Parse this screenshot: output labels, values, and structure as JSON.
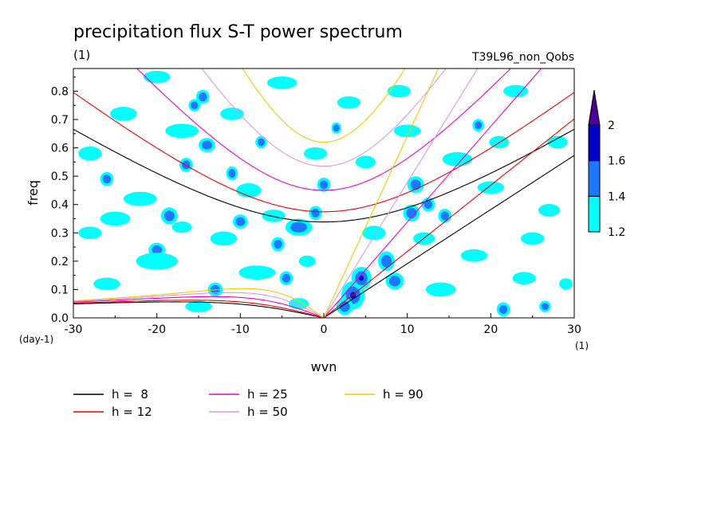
{
  "chart_data": {
    "type": "heatmap",
    "title": "precipitation flux S-T power spectrum",
    "subtitle_left": "(1)",
    "subtitle_right": "T39L96_non_Qobs",
    "xlabel": "wvn",
    "ylabel": "freq",
    "x_unit": "(1)",
    "y_unit": "(day-1)",
    "xlim": [
      -30,
      30
    ],
    "ylim": [
      0,
      0.88
    ],
    "x_ticks": [
      "-30",
      "-20",
      "-10",
      "0",
      "10",
      "20",
      "30"
    ],
    "y_ticks": [
      "0.0",
      "0.1",
      "0.2",
      "0.3",
      "0.4",
      "0.5",
      "0.6",
      "0.7",
      "0.8"
    ],
    "colorbar": {
      "levels": [
        "1.2",
        "1.4",
        "1.6",
        "2"
      ],
      "colors": [
        "#00ffff",
        "#1e78ff",
        "#0000c8",
        "#4b0096"
      ]
    },
    "dispersion_curves": [
      {
        "label": "h =  8",
        "h": 8,
        "color": "#000000"
      },
      {
        "label": "h = 12",
        "h": 12,
        "color": "#e60000"
      },
      {
        "label": "h = 25",
        "h": 25,
        "color": "#e600c8"
      },
      {
        "label": "h = 50",
        "h": 50,
        "color": "#dc96e6"
      },
      {
        "label": "h = 90",
        "h": 90,
        "color": "#f0c800"
      }
    ],
    "contour_blobs": [
      {
        "x": 3.5,
        "y": 0.08,
        "l": 3,
        "rx": 1.4,
        "ry": 0.05
      },
      {
        "x": 4.5,
        "y": 0.14,
        "l": 3,
        "rx": 1.2,
        "ry": 0.04
      },
      {
        "x": 7.5,
        "y": 0.2,
        "l": 2,
        "rx": 1.0,
        "ry": 0.035
      },
      {
        "x": 8.5,
        "y": 0.13,
        "l": 2,
        "rx": 1.1,
        "ry": 0.03
      },
      {
        "x": 2.5,
        "y": 0.04,
        "l": 2,
        "rx": 1.0,
        "ry": 0.03
      },
      {
        "x": 10.5,
        "y": 0.37,
        "l": 2,
        "rx": 1.0,
        "ry": 0.03
      },
      {
        "x": 11,
        "y": 0.47,
        "l": 2,
        "rx": 1.0,
        "ry": 0.03
      },
      {
        "x": 12.5,
        "y": 0.4,
        "l": 2,
        "rx": 0.8,
        "ry": 0.025
      },
      {
        "x": -3,
        "y": 0.32,
        "l": 2,
        "rx": 1.6,
        "ry": 0.03
      },
      {
        "x": -1,
        "y": 0.37,
        "l": 2,
        "rx": 0.8,
        "ry": 0.025
      },
      {
        "x": 0,
        "y": 0.47,
        "l": 2,
        "rx": 0.8,
        "ry": 0.025
      },
      {
        "x": -5.5,
        "y": 0.26,
        "l": 2,
        "rx": 0.8,
        "ry": 0.025
      },
      {
        "x": -18.5,
        "y": 0.36,
        "l": 2,
        "rx": 1.0,
        "ry": 0.03
      },
      {
        "x": -14,
        "y": 0.61,
        "l": 2,
        "rx": 1.0,
        "ry": 0.025
      },
      {
        "x": -16.5,
        "y": 0.54,
        "l": 2,
        "rx": 0.8,
        "ry": 0.025
      },
      {
        "x": -11,
        "y": 0.51,
        "l": 2,
        "rx": 0.7,
        "ry": 0.025
      },
      {
        "x": -14.5,
        "y": 0.78,
        "l": 2,
        "rx": 0.8,
        "ry": 0.025
      },
      {
        "x": -15.5,
        "y": 0.75,
        "l": 2,
        "rx": 0.7,
        "ry": 0.022
      },
      {
        "x": -26,
        "y": 0.49,
        "l": 2,
        "rx": 0.8,
        "ry": 0.025
      },
      {
        "x": -10,
        "y": 0.34,
        "l": 2,
        "rx": 0.9,
        "ry": 0.025
      },
      {
        "x": -4.5,
        "y": 0.14,
        "l": 2,
        "rx": 0.8,
        "ry": 0.025
      },
      {
        "x": -13,
        "y": 0.1,
        "l": 2,
        "rx": 0.9,
        "ry": 0.025
      },
      {
        "x": -20,
        "y": 0.24,
        "l": 2,
        "rx": 1.0,
        "ry": 0.025
      },
      {
        "x": -7.5,
        "y": 0.62,
        "l": 2,
        "rx": 0.7,
        "ry": 0.022
      },
      {
        "x": 1.5,
        "y": 0.67,
        "l": 2,
        "rx": 0.6,
        "ry": 0.02
      },
      {
        "x": 14.5,
        "y": 0.36,
        "l": 2,
        "rx": 0.8,
        "ry": 0.025
      },
      {
        "x": 18.5,
        "y": 0.68,
        "l": 2,
        "rx": 0.7,
        "ry": 0.022
      },
      {
        "x": 21.5,
        "y": 0.03,
        "l": 2,
        "rx": 0.8,
        "ry": 0.025
      },
      {
        "x": 26.5,
        "y": 0.04,
        "l": 2,
        "rx": 0.7,
        "ry": 0.02
      },
      {
        "x": -20,
        "y": 0.2,
        "l": 1,
        "rx": 2.5,
        "ry": 0.03
      },
      {
        "x": -8,
        "y": 0.16,
        "l": 1,
        "rx": 2.2,
        "ry": 0.025
      },
      {
        "x": -25,
        "y": 0.35,
        "l": 1,
        "rx": 1.8,
        "ry": 0.025
      },
      {
        "x": -12,
        "y": 0.28,
        "l": 1,
        "rx": 1.6,
        "ry": 0.025
      },
      {
        "x": -22,
        "y": 0.42,
        "l": 1,
        "rx": 2.0,
        "ry": 0.025
      },
      {
        "x": -9,
        "y": 0.45,
        "l": 1,
        "rx": 1.5,
        "ry": 0.025
      },
      {
        "x": -17,
        "y": 0.66,
        "l": 1,
        "rx": 2.0,
        "ry": 0.025
      },
      {
        "x": -24,
        "y": 0.72,
        "l": 1,
        "rx": 1.6,
        "ry": 0.025
      },
      {
        "x": -5,
        "y": 0.83,
        "l": 1,
        "rx": 1.8,
        "ry": 0.022
      },
      {
        "x": -20,
        "y": 0.85,
        "l": 1,
        "rx": 1.6,
        "ry": 0.022
      },
      {
        "x": -1,
        "y": 0.58,
        "l": 1,
        "rx": 1.4,
        "ry": 0.022
      },
      {
        "x": 3,
        "y": 0.76,
        "l": 1,
        "rx": 1.4,
        "ry": 0.022
      },
      {
        "x": 10,
        "y": 0.66,
        "l": 1,
        "rx": 1.6,
        "ry": 0.022
      },
      {
        "x": 16,
        "y": 0.56,
        "l": 1,
        "rx": 1.8,
        "ry": 0.025
      },
      {
        "x": 20,
        "y": 0.46,
        "l": 1,
        "rx": 1.6,
        "ry": 0.022
      },
      {
        "x": 23,
        "y": 0.8,
        "l": 1,
        "rx": 1.5,
        "ry": 0.022
      },
      {
        "x": 25,
        "y": 0.28,
        "l": 1,
        "rx": 1.4,
        "ry": 0.022
      },
      {
        "x": 18,
        "y": 0.22,
        "l": 1,
        "rx": 1.6,
        "ry": 0.022
      },
      {
        "x": 14,
        "y": 0.1,
        "l": 1,
        "rx": 1.8,
        "ry": 0.025
      },
      {
        "x": 24,
        "y": 0.14,
        "l": 1,
        "rx": 1.4,
        "ry": 0.022
      },
      {
        "x": 28,
        "y": 0.62,
        "l": 1,
        "rx": 1.2,
        "ry": 0.022
      },
      {
        "x": 27,
        "y": 0.38,
        "l": 1,
        "rx": 1.3,
        "ry": 0.022
      },
      {
        "x": 6,
        "y": 0.3,
        "l": 1,
        "rx": 1.4,
        "ry": 0.025
      },
      {
        "x": 5,
        "y": 0.55,
        "l": 1,
        "rx": 1.2,
        "ry": 0.022
      },
      {
        "x": -28,
        "y": 0.58,
        "l": 1,
        "rx": 1.4,
        "ry": 0.025
      },
      {
        "x": -28,
        "y": 0.3,
        "l": 1,
        "rx": 1.4,
        "ry": 0.022
      },
      {
        "x": -26,
        "y": 0.12,
        "l": 1,
        "rx": 1.6,
        "ry": 0.022
      },
      {
        "x": -15,
        "y": 0.04,
        "l": 1,
        "rx": 1.6,
        "ry": 0.02
      },
      {
        "x": -3,
        "y": 0.05,
        "l": 1,
        "rx": 1.2,
        "ry": 0.02
      },
      {
        "x": -6,
        "y": 0.36,
        "l": 1,
        "rx": 1.4,
        "ry": 0.022
      },
      {
        "x": -11,
        "y": 0.72,
        "l": 1,
        "rx": 1.4,
        "ry": 0.022
      },
      {
        "x": 12,
        "y": 0.28,
        "l": 1,
        "rx": 1.3,
        "ry": 0.022
      },
      {
        "x": 21,
        "y": 0.62,
        "l": 1,
        "rx": 1.2,
        "ry": 0.022
      },
      {
        "x": 9,
        "y": 0.8,
        "l": 1,
        "rx": 1.4,
        "ry": 0.022
      },
      {
        "x": -2,
        "y": 0.2,
        "l": 1,
        "rx": 1.0,
        "ry": 0.02
      },
      {
        "x": 29,
        "y": 0.12,
        "l": 1,
        "rx": 0.8,
        "ry": 0.02
      },
      {
        "x": -17,
        "y": 0.32,
        "l": 1,
        "rx": 1.2,
        "ry": 0.02
      }
    ]
  }
}
